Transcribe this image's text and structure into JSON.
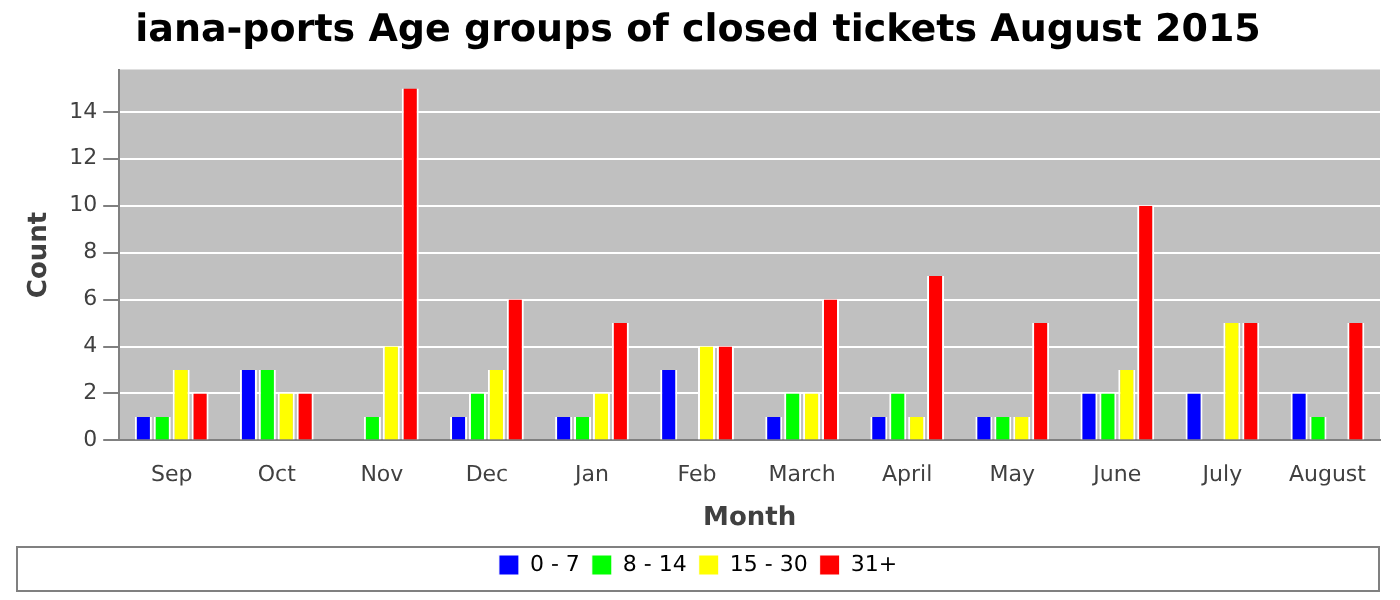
{
  "chart_data": {
    "type": "bar",
    "title": "iana-ports Age groups of closed tickets August 2015",
    "xlabel": "Month",
    "ylabel": "Count",
    "categories": [
      "Sep",
      "Oct",
      "Nov",
      "Dec",
      "Jan",
      "Feb",
      "March",
      "April",
      "May",
      "June",
      "July",
      "August"
    ],
    "series": [
      {
        "name": "0 - 7",
        "color": "#0000ff",
        "values": [
          1,
          3,
          0,
          1,
          1,
          3,
          1,
          1,
          1,
          2,
          2,
          2
        ]
      },
      {
        "name": "8 - 14",
        "color": "#00ff00",
        "values": [
          1,
          3,
          1,
          2,
          1,
          0,
          2,
          2,
          1,
          2,
          0,
          1
        ]
      },
      {
        "name": "15 - 30",
        "color": "#ffff00",
        "values": [
          3,
          2,
          4,
          3,
          2,
          4,
          2,
          1,
          1,
          3,
          5,
          0
        ]
      },
      {
        "name": "31+",
        "color": "#ff0000",
        "values": [
          2,
          2,
          15,
          6,
          5,
          4,
          6,
          7,
          5,
          10,
          5,
          5
        ]
      }
    ],
    "ylim": [
      0,
      15.8
    ],
    "yticks": [
      0,
      2,
      4,
      6,
      8,
      10,
      12,
      14
    ],
    "grid": "y",
    "legend": "bottom"
  }
}
